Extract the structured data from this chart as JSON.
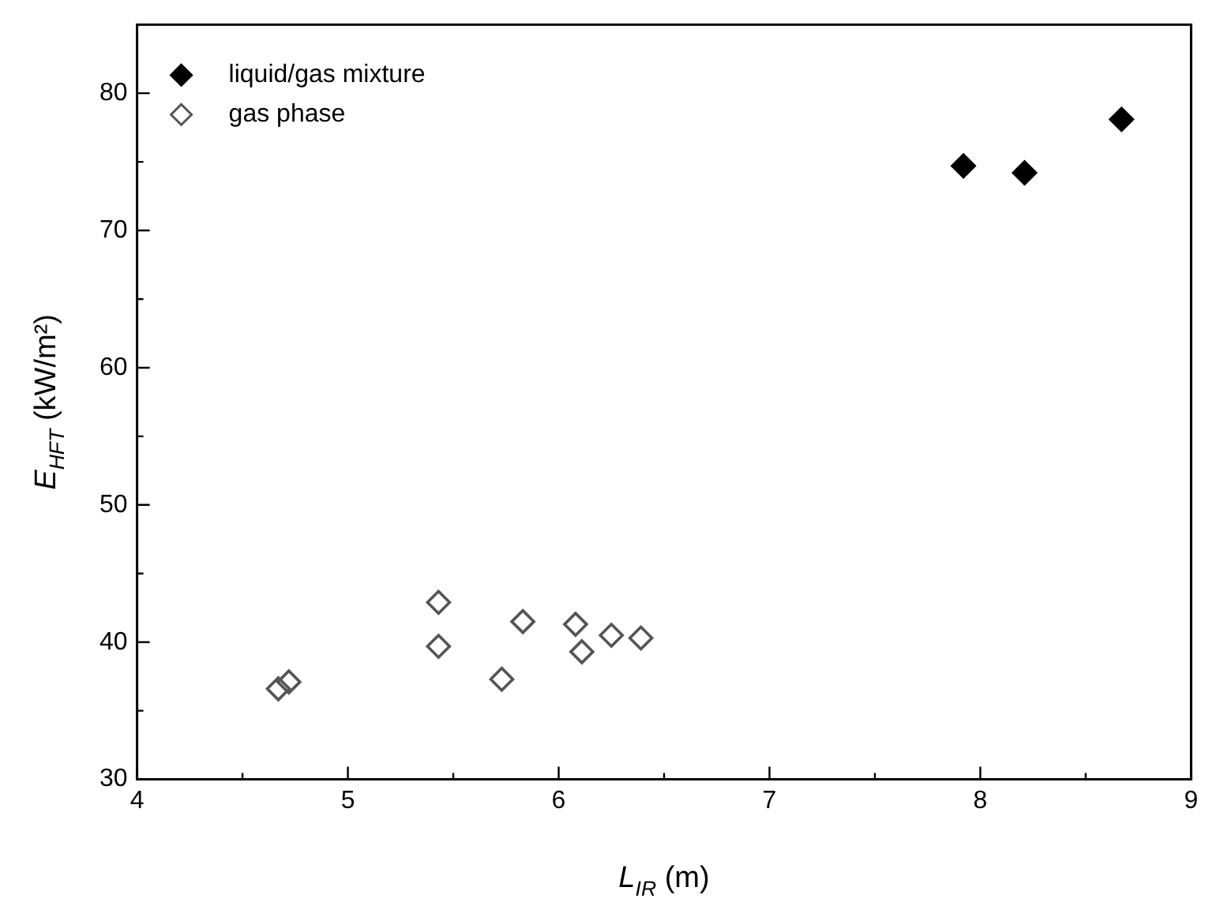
{
  "chart_data": {
    "type": "scatter",
    "xlabel": "L$_{IR}$ (m)",
    "ylabel": "E$_{HFT}$ (kW/m²)",
    "xlim": [
      4,
      9
    ],
    "xticks": [
      4,
      5,
      6,
      7,
      8,
      9
    ],
    "ylim": [
      30,
      85
    ],
    "yticks": [
      30,
      40,
      50,
      60,
      70,
      80
    ],
    "grid": false,
    "legend": "top left",
    "marker": "diamond",
    "series": [
      {
        "name": "liquid/gas mixture",
        "color": "#000000",
        "x": [
          7.92,
          8.21,
          8.67
        ],
        "values": [
          74.7,
          74.2,
          78.1
        ]
      },
      {
        "name": "gas phase",
        "color": "#555555",
        "x": [
          4.67,
          4.72,
          5.43,
          5.43,
          5.73,
          5.83,
          6.08,
          6.11,
          6.25,
          6.39
        ],
        "values": [
          36.6,
          37.1,
          42.9,
          39.7,
          37.3,
          41.5,
          41.3,
          39.3,
          40.5,
          40.3
        ]
      }
    ]
  }
}
